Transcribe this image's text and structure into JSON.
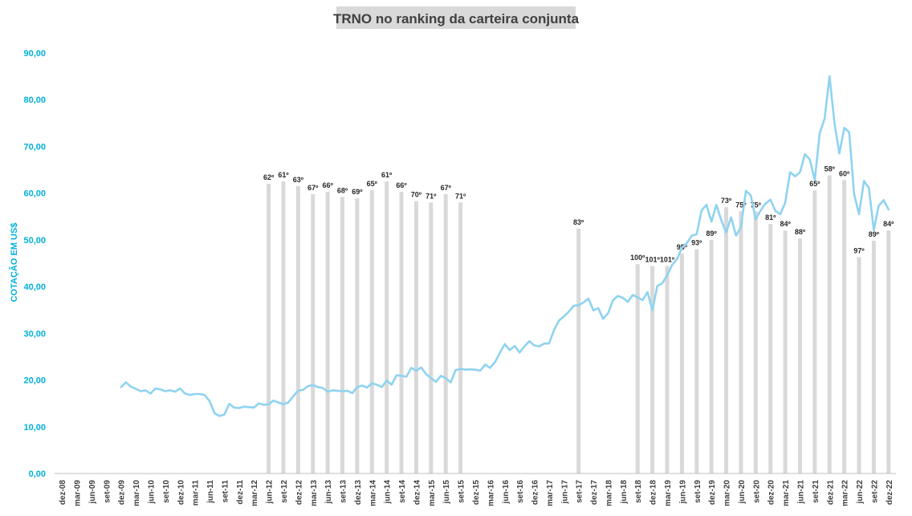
{
  "chart_data": {
    "type": "bar+line",
    "title": "TRNO no ranking da carteira conjunta",
    "ylabel": "COTAÇÃO EM US$",
    "ylim": [
      0,
      90
    ],
    "yticks": [
      "0,00",
      "10,00",
      "20,00",
      "30,00",
      "40,00",
      "50,00",
      "60,00",
      "70,00",
      "80,00",
      "90,00"
    ],
    "categories": [
      "dez-08",
      "mar-09",
      "jun-09",
      "set-09",
      "dez-09",
      "mar-10",
      "jun-10",
      "set-10",
      "dez-10",
      "mar-11",
      "jun-11",
      "set-11",
      "dez-11",
      "mar-12",
      "jun-12",
      "set-12",
      "dez-12",
      "mar-13",
      "jun-13",
      "set-13",
      "dez-13",
      "mar-14",
      "jun-14",
      "set-14",
      "dez-14",
      "mar-15",
      "jun-15",
      "set-15",
      "dez-15",
      "mar-16",
      "jun-16",
      "set-16",
      "dez-16",
      "mar-17",
      "jun-17",
      "set-17",
      "dez-17",
      "mar-18",
      "jun-18",
      "set-18",
      "dez-18",
      "mar-19",
      "jun-19",
      "set-19",
      "dez-19",
      "mar-20",
      "jun-20",
      "set-20",
      "dez-20",
      "mar-21",
      "jun-21",
      "set-21",
      "dez-21",
      "mar-22",
      "jun-22",
      "set-22",
      "dez-22"
    ],
    "colors": {
      "line": "#8fd3f0",
      "bar": "#d9d9d9",
      "axis_text": "#00b0d8",
      "title_bg": "#d9d9d9"
    },
    "bars": [
      {
        "x": "jun-12",
        "value": 62,
        "label": "62º"
      },
      {
        "x": "set-12",
        "value": 62.5,
        "label": "61º"
      },
      {
        "x": "dez-12",
        "value": 61.5,
        "label": "63º"
      },
      {
        "x": "mar-13",
        "value": 59.8,
        "label": "67º"
      },
      {
        "x": "jun-13",
        "value": 60.3,
        "label": "66º"
      },
      {
        "x": "set-13",
        "value": 59.2,
        "label": "68º"
      },
      {
        "x": "dez-13",
        "value": 58.9,
        "label": "69º"
      },
      {
        "x": "mar-14",
        "value": 60.6,
        "label": "65º"
      },
      {
        "x": "jun-14",
        "value": 62.5,
        "label": "61º"
      },
      {
        "x": "set-14",
        "value": 60.3,
        "label": "66º"
      },
      {
        "x": "dez-14",
        "value": 58.3,
        "label": "70º"
      },
      {
        "x": "mar-15",
        "value": 58,
        "label": "71º"
      },
      {
        "x": "jun-15",
        "value": 59.8,
        "label": "67º"
      },
      {
        "x": "set-15",
        "value": 58,
        "label": "71º"
      },
      {
        "x": "set-17",
        "value": 52.4,
        "label": "83º"
      },
      {
        "x": "set-18",
        "value": 44.8,
        "label": "100º"
      },
      {
        "x": "dez-18",
        "value": 44.4,
        "label": "101º"
      },
      {
        "x": "mar-19",
        "value": 44.4,
        "label": "101º"
      },
      {
        "x": "jun-19",
        "value": 47.1,
        "label": "95º"
      },
      {
        "x": "set-19",
        "value": 48,
        "label": "93º"
      },
      {
        "x": "dez-19",
        "value": 50,
        "label": "89º"
      },
      {
        "x": "mar-20",
        "value": 57,
        "label": "73º"
      },
      {
        "x": "jun-20",
        "value": 56.1,
        "label": "75º"
      },
      {
        "x": "set-20",
        "value": 56.1,
        "label": "75º"
      },
      {
        "x": "dez-20",
        "value": 53.4,
        "label": "81º"
      },
      {
        "x": "mar-21",
        "value": 52,
        "label": "84º"
      },
      {
        "x": "jun-21",
        "value": 50.3,
        "label": "88º"
      },
      {
        "x": "set-21",
        "value": 60.6,
        "label": "65º"
      },
      {
        "x": "dez-21",
        "value": 63.8,
        "label": "58º"
      },
      {
        "x": "mar-22",
        "value": 62.8,
        "label": "60º"
      },
      {
        "x": "jun-22",
        "value": 46.3,
        "label": "97º"
      },
      {
        "x": "set-22",
        "value": 49.8,
        "label": "89º"
      },
      {
        "x": "dez-22",
        "value": 52,
        "label": "84º"
      }
    ],
    "line": {
      "name": "",
      "start": "dez-09",
      "step_months": 1,
      "values": [
        18.5,
        19.5,
        18.6,
        18.1,
        17.6,
        17.8,
        17.1,
        18.2,
        18.0,
        17.6,
        17.8,
        17.5,
        18.2,
        17.1,
        16.8,
        17.0,
        17.0,
        16.8,
        15.5,
        12.9,
        12.3,
        12.6,
        14.9,
        14.1,
        14.0,
        14.3,
        14.2,
        14.1,
        15.0,
        14.7,
        14.8,
        15.6,
        15.2,
        14.8,
        15.2,
        16.5,
        17.7,
        17.9,
        18.7,
        18.9,
        18.5,
        18.3,
        17.5,
        17.8,
        17.7,
        17.6,
        17.7,
        17.2,
        18.5,
        18.8,
        18.4,
        19.3,
        19.0,
        18.5,
        19.9,
        19.0,
        21.0,
        20.9,
        20.7,
        22.6,
        22.0,
        22.7,
        21.3,
        20.4,
        19.6,
        20.9,
        20.4,
        19.5,
        22.1,
        22.4,
        22.2,
        22.3,
        22.2,
        22.0,
        23.3,
        22.6,
        23.8,
        25.8,
        27.7,
        26.4,
        27.3,
        25.9,
        27.2,
        28.3,
        27.4,
        27.2,
        27.8,
        27.8,
        30.7,
        32.7,
        33.6,
        34.6,
        35.9,
        36.0,
        36.6,
        37.4,
        34.9,
        35.4,
        33.1,
        34.3,
        37.1,
        38.0,
        37.6,
        36.7,
        38.2,
        37.7,
        37.1,
        38.8,
        35.0,
        40.1,
        40.7,
        42.4,
        44.6,
        45.9,
        48.3,
        49.3,
        50.9,
        51.2,
        56.3,
        57.5,
        53.9,
        57.5,
        54.2,
        51.6,
        54.8,
        50.9,
        52.7,
        60.5,
        59.5,
        54.4,
        56.3,
        57.8,
        58.6,
        56.2,
        55.5,
        58.0,
        64.5,
        63.6,
        64.5,
        68.3,
        67.2,
        62.8,
        72.8,
        75.9,
        85.0,
        75.0,
        68.5,
        74.0,
        73.0,
        59.8,
        55.5,
        62.6,
        61.1,
        52.1,
        57.3,
        58.5,
        56.5
      ]
    }
  }
}
